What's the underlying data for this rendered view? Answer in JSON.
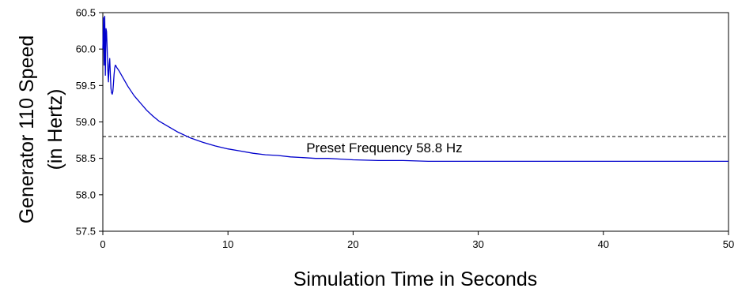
{
  "chart_data": {
    "type": "line",
    "title": "",
    "xlabel": "Simulation Time in Seconds",
    "ylabel_lines": [
      "Generator 110 Speed",
      "(in Hertz)"
    ],
    "xlim": [
      0,
      50
    ],
    "ylim": [
      57.5,
      60.5
    ],
    "x_ticks": [
      0,
      10,
      20,
      30,
      40,
      50
    ],
    "y_ticks": [
      57.5,
      58.0,
      58.5,
      59.0,
      59.5,
      60.0,
      60.5
    ],
    "x_tick_labels": [
      "0",
      "10",
      "20",
      "30",
      "40",
      "50"
    ],
    "y_tick_labels": [
      "57.5",
      "58.0",
      "58.5",
      "59.0",
      "59.5",
      "60.0",
      "60.5"
    ],
    "grid": false,
    "colors": {
      "series": "#0000cc",
      "reference": "#000000"
    },
    "reference_line": {
      "y": 58.8,
      "style": "dashed"
    },
    "annotation": {
      "text": "Preset Frequency 58.8 Hz",
      "x": 22.5,
      "y": 58.65
    },
    "series": [
      {
        "x": [
          0,
          0.05,
          0.1,
          0.15,
          0.2,
          0.25,
          0.3,
          0.35,
          0.4,
          0.45,
          0.5,
          0.55,
          0.6,
          0.65,
          0.7,
          0.75,
          0.8,
          0.85,
          0.9,
          0.95,
          1.0,
          1.05,
          1.1,
          1.3,
          1.5,
          2,
          2.5,
          3,
          3.5,
          4,
          4.5,
          5,
          5.5,
          6,
          7,
          8,
          9,
          10,
          11,
          12,
          13,
          14,
          15,
          16,
          17,
          18,
          19,
          20,
          22,
          24,
          26,
          28,
          30,
          33,
          36,
          40,
          45,
          50
        ],
        "y": [
          60.0,
          60.43,
          59.78,
          60.45,
          59.64,
          60.28,
          60.24,
          60.0,
          59.72,
          59.55,
          59.78,
          59.87,
          59.65,
          59.46,
          59.4,
          59.38,
          59.42,
          59.52,
          59.65,
          59.74,
          59.78,
          59.77,
          59.75,
          59.7,
          59.64,
          59.49,
          59.36,
          59.26,
          59.16,
          59.08,
          59.01,
          58.96,
          58.91,
          58.86,
          58.78,
          58.72,
          58.67,
          58.63,
          58.6,
          58.57,
          58.55,
          58.54,
          58.52,
          58.51,
          58.5,
          58.5,
          58.49,
          58.48,
          58.47,
          58.47,
          58.46,
          58.46,
          58.46,
          58.46,
          58.46,
          58.46,
          58.46,
          58.46
        ]
      }
    ]
  }
}
